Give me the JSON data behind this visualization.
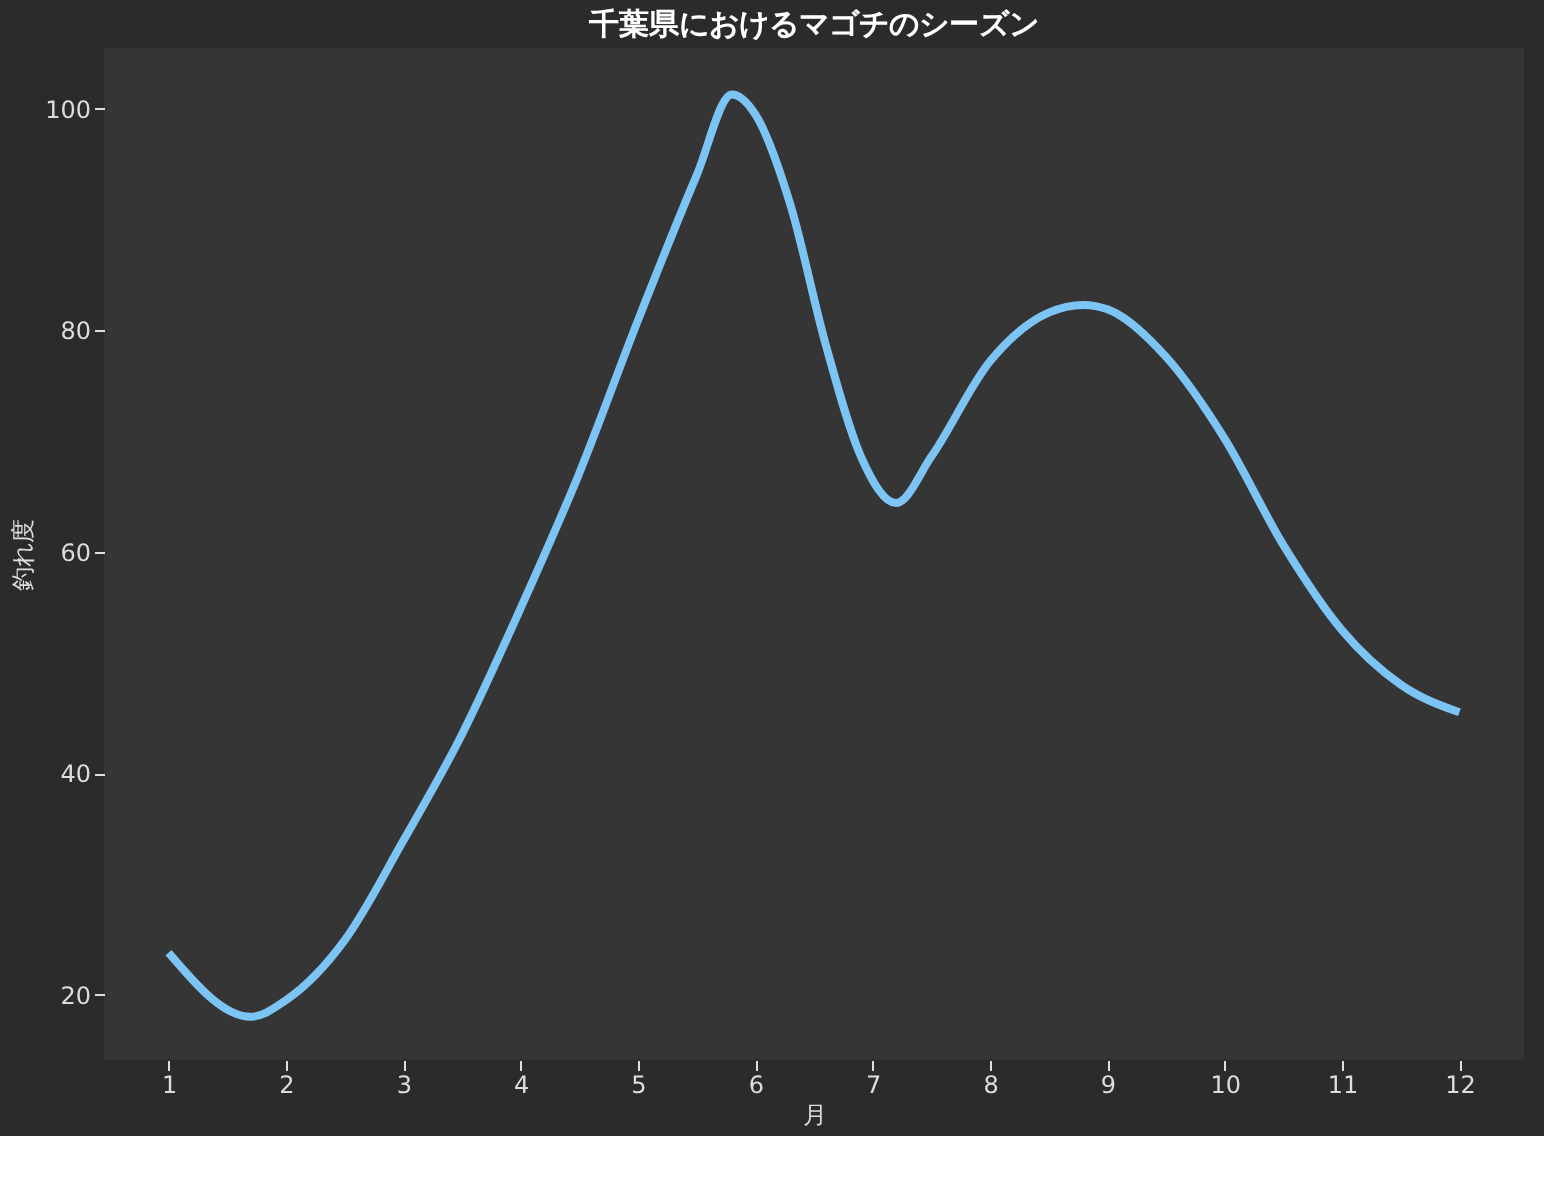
{
  "chart_data": {
    "type": "line",
    "title": "千葉県におけるマゴチのシーズン",
    "xlabel": "月",
    "ylabel": "釣れ度",
    "x": [
      1,
      1.7,
      2,
      2.5,
      3,
      3.5,
      4,
      4.5,
      5,
      5.5,
      5.8,
      6,
      6.3,
      6.6,
      6.9,
      7.2,
      7.5,
      8,
      8.5,
      8.8,
      9,
      9.5,
      10,
      10.5,
      11,
      11.5,
      12
    ],
    "series": [
      {
        "color": "#7cc4f4",
        "values": [
          23.8,
          18.0,
          19.5,
          24.9,
          33.9,
          43.5,
          54.9,
          67.1,
          80.9,
          94.0,
          101.3,
          99.5,
          91.3,
          78.7,
          68.6,
          64.4,
          68.6,
          77.2,
          81.6,
          82.3,
          81.9,
          77.6,
          70.2,
          60.6,
          52.9,
          48.0,
          45.5
        ]
      }
    ],
    "xlim": [
      0.45,
      12.55
    ],
    "ylim": [
      14.1,
      105.5
    ],
    "xticks": [
      1,
      2,
      3,
      4,
      5,
      6,
      7,
      8,
      9,
      10,
      11,
      12
    ],
    "yticks": [
      20,
      40,
      60,
      80,
      100
    ],
    "grid": false,
    "marker": "none",
    "line_style": "solid"
  }
}
